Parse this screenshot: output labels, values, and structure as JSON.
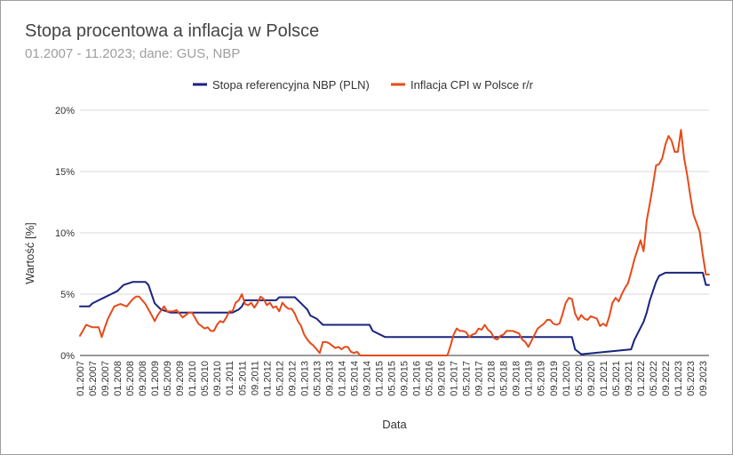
{
  "chart_data": {
    "type": "line",
    "title": "Stopa procentowa a inflacja w Polsce",
    "subtitle": "01.2007 - 11.2023; dane: GUS, NBP",
    "xlabel": "Data",
    "ylabel": "Wartość [%]",
    "ylim": [
      0,
      20
    ],
    "yticks": [
      "0%",
      "5%",
      "10%",
      "15%",
      "20%"
    ],
    "ytick_values": [
      0,
      5,
      10,
      15,
      20
    ],
    "grid": true,
    "legend": "top",
    "x_start": "01.2007",
    "x_end": "11.2023",
    "xtick_labels": [
      "01.2007",
      "05.2007",
      "09.2007",
      "01.2008",
      "05.2008",
      "09.2008",
      "01.2009",
      "05.2009",
      "09.2009",
      "01.2010",
      "05.2010",
      "09.2010",
      "01.2011",
      "05.2011",
      "09.2011",
      "01.2012",
      "05.2012",
      "09.2012",
      "01.2013",
      "05.2013",
      "09.2013",
      "01.2014",
      "05.2014",
      "09.2014",
      "01.2015",
      "05.2015",
      "09.2015",
      "01.2016",
      "05.2016",
      "09.2016",
      "01.2017",
      "05.2017",
      "09.2017",
      "01.2018",
      "05.2018",
      "09.2018",
      "01.2019",
      "05.2019",
      "09.2019",
      "01.2020",
      "05.2020",
      "09.2020",
      "01.2021",
      "05.2021",
      "09.2021",
      "01.2022",
      "05.2022",
      "09.2022",
      "01.2023",
      "05.2023",
      "09.2023"
    ],
    "series": [
      {
        "name": "Stopa referencyjna NBP (PLN)",
        "color": "#1a237e",
        "points": [
          [
            "01.2007",
            4.0
          ],
          [
            "04.2007",
            4.0
          ],
          [
            "05.2007",
            4.25
          ],
          [
            "07.2007",
            4.5
          ],
          [
            "09.2007",
            4.75
          ],
          [
            "11.2007",
            5.0
          ],
          [
            "01.2008",
            5.25
          ],
          [
            "02.2008",
            5.5
          ],
          [
            "03.2008",
            5.75
          ],
          [
            "06.2008",
            6.0
          ],
          [
            "10.2008",
            6.0
          ],
          [
            "11.2008",
            5.75
          ],
          [
            "12.2008",
            5.0
          ],
          [
            "01.2009",
            4.25
          ],
          [
            "02.2009",
            4.0
          ],
          [
            "03.2009",
            3.75
          ],
          [
            "06.2009",
            3.5
          ],
          [
            "02.2011",
            3.5
          ],
          [
            "04.2011",
            3.75
          ],
          [
            "05.2011",
            4.0
          ],
          [
            "06.2011",
            4.5
          ],
          [
            "04.2012",
            4.5
          ],
          [
            "05.2012",
            4.75
          ],
          [
            "10.2012",
            4.75
          ],
          [
            "11.2012",
            4.5
          ],
          [
            "12.2012",
            4.25
          ],
          [
            "01.2013",
            4.0
          ],
          [
            "02.2013",
            3.75
          ],
          [
            "03.2013",
            3.25
          ],
          [
            "05.2013",
            3.0
          ],
          [
            "06.2013",
            2.75
          ],
          [
            "07.2013",
            2.5
          ],
          [
            "10.2014",
            2.5
          ],
          [
            "11.2014",
            2.0
          ],
          [
            "03.2015",
            1.5
          ],
          [
            "03.2020",
            1.5
          ],
          [
            "04.2020",
            0.5
          ],
          [
            "06.2020",
            0.1
          ],
          [
            "10.2021",
            0.5
          ],
          [
            "11.2021",
            1.25
          ],
          [
            "12.2021",
            1.75
          ],
          [
            "01.2022",
            2.25
          ],
          [
            "02.2022",
            2.75
          ],
          [
            "03.2022",
            3.5
          ],
          [
            "04.2022",
            4.5
          ],
          [
            "05.2022",
            5.25
          ],
          [
            "06.2022",
            6.0
          ],
          [
            "07.2022",
            6.5
          ],
          [
            "09.2022",
            6.75
          ],
          [
            "09.2023",
            6.75
          ],
          [
            "10.2023",
            5.75
          ],
          [
            "11.2023",
            5.75
          ]
        ]
      },
      {
        "name": "Inflacja CPI w Polsce r/r",
        "color": "#e64a19",
        "points": [
          [
            "01.2007",
            1.6
          ],
          [
            "03.2007",
            2.5
          ],
          [
            "05.2007",
            2.3
          ],
          [
            "07.2007",
            2.3
          ],
          [
            "08.2007",
            1.5
          ],
          [
            "09.2007",
            2.3
          ],
          [
            "10.2007",
            3.0
          ],
          [
            "12.2007",
            4.0
          ],
          [
            "02.2008",
            4.2
          ],
          [
            "04.2008",
            4.0
          ],
          [
            "06.2008",
            4.6
          ],
          [
            "07.2008",
            4.8
          ],
          [
            "08.2008",
            4.8
          ],
          [
            "09.2008",
            4.5
          ],
          [
            "10.2008",
            4.2
          ],
          [
            "12.2008",
            3.3
          ],
          [
            "01.2009",
            2.8
          ],
          [
            "02.2009",
            3.3
          ],
          [
            "04.2009",
            4.0
          ],
          [
            "05.2009",
            3.6
          ],
          [
            "07.2009",
            3.6
          ],
          [
            "08.2009",
            3.7
          ],
          [
            "09.2009",
            3.4
          ],
          [
            "10.2009",
            3.1
          ],
          [
            "11.2009",
            3.3
          ],
          [
            "12.2009",
            3.5
          ],
          [
            "01.2010",
            3.5
          ],
          [
            "03.2010",
            2.6
          ],
          [
            "05.2010",
            2.2
          ],
          [
            "06.2010",
            2.3
          ],
          [
            "07.2010",
            2.0
          ],
          [
            "08.2010",
            2.0
          ],
          [
            "09.2010",
            2.5
          ],
          [
            "10.2010",
            2.8
          ],
          [
            "11.2010",
            2.7
          ],
          [
            "12.2010",
            3.1
          ],
          [
            "01.2011",
            3.6
          ],
          [
            "02.2011",
            3.6
          ],
          [
            "03.2011",
            4.3
          ],
          [
            "04.2011",
            4.5
          ],
          [
            "05.2011",
            5.0
          ],
          [
            "06.2011",
            4.2
          ],
          [
            "07.2011",
            4.1
          ],
          [
            "08.2011",
            4.3
          ],
          [
            "09.2011",
            3.9
          ],
          [
            "10.2011",
            4.3
          ],
          [
            "11.2011",
            4.8
          ],
          [
            "12.2011",
            4.6
          ],
          [
            "01.2012",
            4.1
          ],
          [
            "02.2012",
            4.3
          ],
          [
            "03.2012",
            3.9
          ],
          [
            "04.2012",
            4.0
          ],
          [
            "05.2012",
            3.6
          ],
          [
            "06.2012",
            4.3
          ],
          [
            "07.2012",
            4.0
          ],
          [
            "08.2012",
            3.8
          ],
          [
            "09.2012",
            3.8
          ],
          [
            "10.2012",
            3.4
          ],
          [
            "11.2012",
            2.8
          ],
          [
            "12.2012",
            2.4
          ],
          [
            "01.2013",
            1.7
          ],
          [
            "02.2013",
            1.3
          ],
          [
            "03.2013",
            1.0
          ],
          [
            "04.2013",
            0.8
          ],
          [
            "05.2013",
            0.5
          ],
          [
            "06.2013",
            0.2
          ],
          [
            "07.2013",
            1.1
          ],
          [
            "08.2013",
            1.1
          ],
          [
            "09.2013",
            1.0
          ],
          [
            "10.2013",
            0.8
          ],
          [
            "11.2013",
            0.6
          ],
          [
            "12.2013",
            0.7
          ],
          [
            "01.2014",
            0.5
          ],
          [
            "02.2014",
            0.7
          ],
          [
            "03.2014",
            0.7
          ],
          [
            "04.2014",
            0.3
          ],
          [
            "05.2014",
            0.2
          ],
          [
            "06.2014",
            0.3
          ],
          [
            "07.2014",
            0.0
          ],
          [
            "10.2016",
            0.0
          ],
          [
            "11.2016",
            0.0
          ],
          [
            "12.2016",
            0.8
          ],
          [
            "01.2017",
            1.7
          ],
          [
            "02.2017",
            2.2
          ],
          [
            "03.2017",
            2.0
          ],
          [
            "04.2017",
            2.0
          ],
          [
            "05.2017",
            1.9
          ],
          [
            "06.2017",
            1.5
          ],
          [
            "07.2017",
            1.7
          ],
          [
            "08.2017",
            1.8
          ],
          [
            "09.2017",
            2.2
          ],
          [
            "10.2017",
            2.1
          ],
          [
            "11.2017",
            2.5
          ],
          [
            "12.2017",
            2.1
          ],
          [
            "01.2018",
            1.9
          ],
          [
            "02.2018",
            1.4
          ],
          [
            "03.2018",
            1.3
          ],
          [
            "04.2018",
            1.6
          ],
          [
            "05.2018",
            1.7
          ],
          [
            "06.2018",
            2.0
          ],
          [
            "07.2018",
            2.0
          ],
          [
            "08.2018",
            2.0
          ],
          [
            "09.2018",
            1.9
          ],
          [
            "10.2018",
            1.8
          ],
          [
            "11.2018",
            1.3
          ],
          [
            "12.2018",
            1.1
          ],
          [
            "01.2019",
            0.7
          ],
          [
            "02.2019",
            1.2
          ],
          [
            "03.2019",
            1.7
          ],
          [
            "04.2019",
            2.2
          ],
          [
            "05.2019",
            2.4
          ],
          [
            "06.2019",
            2.6
          ],
          [
            "07.2019",
            2.9
          ],
          [
            "08.2019",
            2.9
          ],
          [
            "09.2019",
            2.6
          ],
          [
            "10.2019",
            2.5
          ],
          [
            "11.2019",
            2.6
          ],
          [
            "12.2019",
            3.4
          ],
          [
            "01.2020",
            4.3
          ],
          [
            "02.2020",
            4.7
          ],
          [
            "03.2020",
            4.6
          ],
          [
            "04.2020",
            3.4
          ],
          [
            "05.2020",
            2.9
          ],
          [
            "06.2020",
            3.3
          ],
          [
            "07.2020",
            3.0
          ],
          [
            "08.2020",
            2.9
          ],
          [
            "09.2020",
            3.2
          ],
          [
            "10.2020",
            3.1
          ],
          [
            "11.2020",
            3.0
          ],
          [
            "12.2020",
            2.4
          ],
          [
            "01.2021",
            2.6
          ],
          [
            "02.2021",
            2.4
          ],
          [
            "03.2021",
            3.2
          ],
          [
            "04.2021",
            4.3
          ],
          [
            "05.2021",
            4.7
          ],
          [
            "06.2021",
            4.4
          ],
          [
            "07.2021",
            5.0
          ],
          [
            "08.2021",
            5.5
          ],
          [
            "09.2021",
            5.9
          ],
          [
            "10.2021",
            6.8
          ],
          [
            "11.2021",
            7.8
          ],
          [
            "12.2021",
            8.6
          ],
          [
            "01.2022",
            9.4
          ],
          [
            "02.2022",
            8.5
          ],
          [
            "03.2022",
            11.0
          ],
          [
            "04.2022",
            12.4
          ],
          [
            "05.2022",
            13.9
          ],
          [
            "06.2022",
            15.5
          ],
          [
            "07.2022",
            15.6
          ],
          [
            "08.2022",
            16.1
          ],
          [
            "09.2022",
            17.2
          ],
          [
            "10.2022",
            17.9
          ],
          [
            "11.2022",
            17.5
          ],
          [
            "12.2022",
            16.6
          ],
          [
            "01.2023",
            16.6
          ],
          [
            "02.2023",
            18.4
          ],
          [
            "03.2023",
            16.1
          ],
          [
            "04.2023",
            14.7
          ],
          [
            "05.2023",
            13.0
          ],
          [
            "06.2023",
            11.5
          ],
          [
            "07.2023",
            10.8
          ],
          [
            "08.2023",
            10.1
          ],
          [
            "09.2023",
            8.2
          ],
          [
            "10.2023",
            6.6
          ],
          [
            "11.2023",
            6.6
          ]
        ]
      }
    ]
  }
}
